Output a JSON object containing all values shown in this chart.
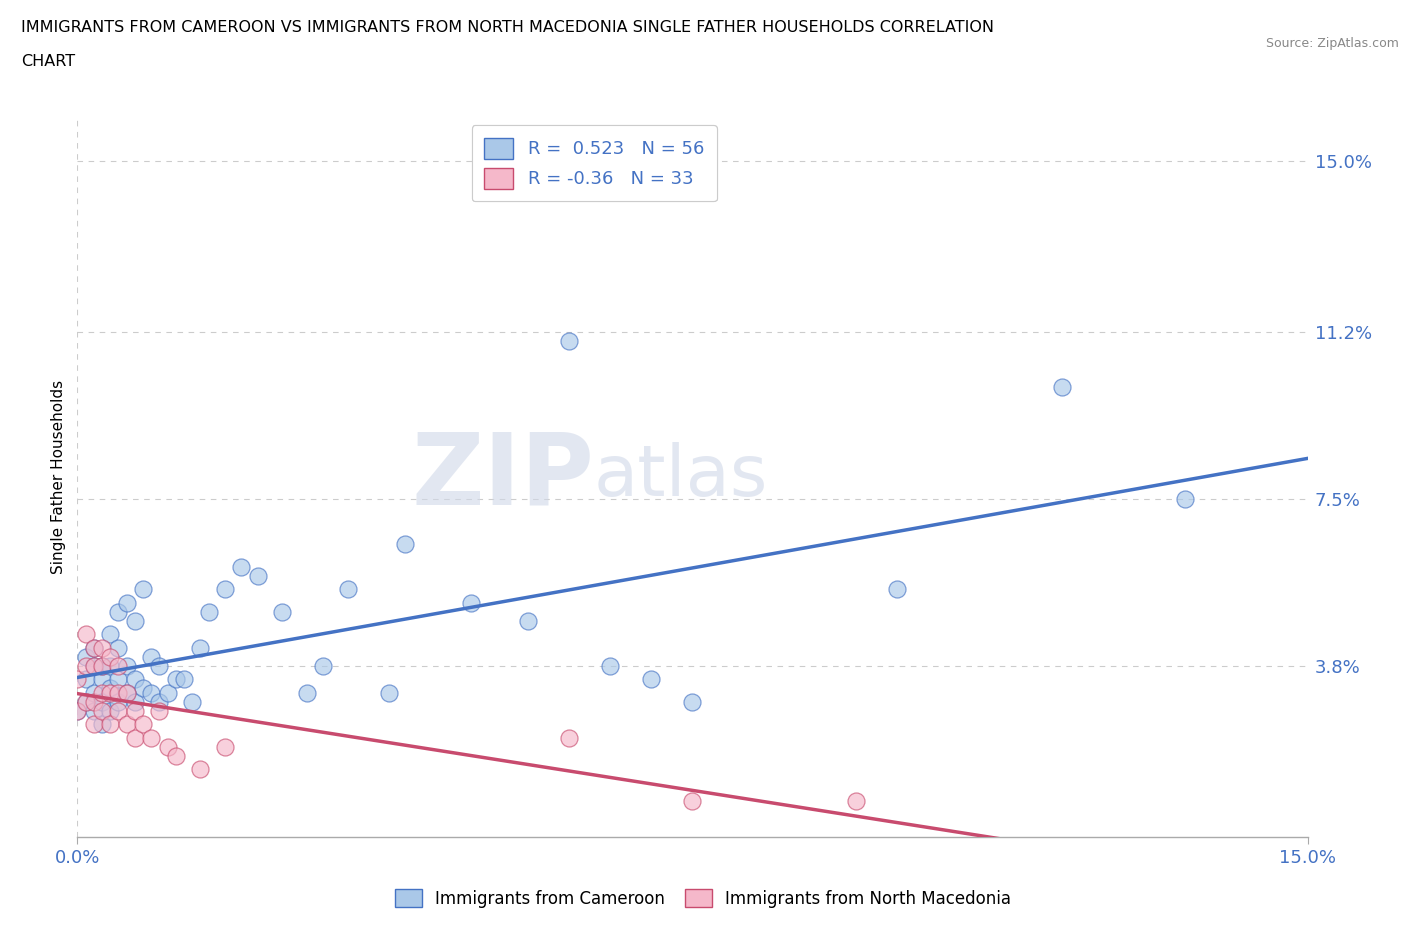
{
  "title_line1": "IMMIGRANTS FROM CAMEROON VS IMMIGRANTS FROM NORTH MACEDONIA SINGLE FATHER HOUSEHOLDS CORRELATION",
  "title_line2": "CHART",
  "source": "Source: ZipAtlas.com",
  "ylabel": "Single Father Households",
  "xlim": [
    0.0,
    0.15
  ],
  "ylim": [
    0.0,
    0.16
  ],
  "ytick_positions": [
    0.038,
    0.075,
    0.112,
    0.15
  ],
  "ytick_labels": [
    "3.8%",
    "7.5%",
    "11.2%",
    "15.0%"
  ],
  "cameroon_R": 0.523,
  "cameroon_N": 56,
  "macedonia_R": -0.36,
  "macedonia_N": 33,
  "blue_color": "#aac8e8",
  "pink_color": "#f5b8ca",
  "blue_line_color": "#4472c4",
  "pink_line_color": "#c84b6e",
  "legend_label_blue": "Immigrants from Cameroon",
  "legend_label_pink": "Immigrants from North Macedonia",
  "watermark_zip": "ZIP",
  "watermark_atlas": "atlas",
  "cameroon_x": [
    0.0,
    0.001,
    0.001,
    0.001,
    0.002,
    0.002,
    0.002,
    0.002,
    0.003,
    0.003,
    0.003,
    0.003,
    0.004,
    0.004,
    0.004,
    0.004,
    0.005,
    0.005,
    0.005,
    0.005,
    0.006,
    0.006,
    0.006,
    0.007,
    0.007,
    0.007,
    0.008,
    0.008,
    0.009,
    0.009,
    0.01,
    0.01,
    0.011,
    0.012,
    0.013,
    0.014,
    0.015,
    0.016,
    0.018,
    0.02,
    0.022,
    0.025,
    0.028,
    0.03,
    0.033,
    0.038,
    0.04,
    0.048,
    0.055,
    0.06,
    0.065,
    0.07,
    0.075,
    0.1,
    0.12,
    0.135
  ],
  "cameroon_y": [
    0.028,
    0.03,
    0.035,
    0.04,
    0.028,
    0.032,
    0.038,
    0.042,
    0.025,
    0.03,
    0.035,
    0.038,
    0.028,
    0.033,
    0.038,
    0.045,
    0.03,
    0.035,
    0.042,
    0.05,
    0.032,
    0.038,
    0.052,
    0.03,
    0.035,
    0.048,
    0.033,
    0.055,
    0.032,
    0.04,
    0.03,
    0.038,
    0.032,
    0.035,
    0.035,
    0.03,
    0.042,
    0.05,
    0.055,
    0.06,
    0.058,
    0.05,
    0.032,
    0.038,
    0.055,
    0.032,
    0.065,
    0.052,
    0.048,
    0.11,
    0.038,
    0.035,
    0.03,
    0.055,
    0.1,
    0.075
  ],
  "macedonia_x": [
    0.0,
    0.0,
    0.001,
    0.001,
    0.001,
    0.002,
    0.002,
    0.002,
    0.002,
    0.003,
    0.003,
    0.003,
    0.003,
    0.004,
    0.004,
    0.004,
    0.005,
    0.005,
    0.005,
    0.006,
    0.006,
    0.007,
    0.007,
    0.008,
    0.009,
    0.01,
    0.011,
    0.012,
    0.015,
    0.018,
    0.06,
    0.075,
    0.095
  ],
  "macedonia_y": [
    0.028,
    0.035,
    0.03,
    0.038,
    0.045,
    0.025,
    0.03,
    0.038,
    0.042,
    0.028,
    0.032,
    0.038,
    0.042,
    0.025,
    0.032,
    0.04,
    0.028,
    0.032,
    0.038,
    0.025,
    0.032,
    0.022,
    0.028,
    0.025,
    0.022,
    0.028,
    0.02,
    0.018,
    0.015,
    0.02,
    0.022,
    0.008,
    0.008
  ]
}
